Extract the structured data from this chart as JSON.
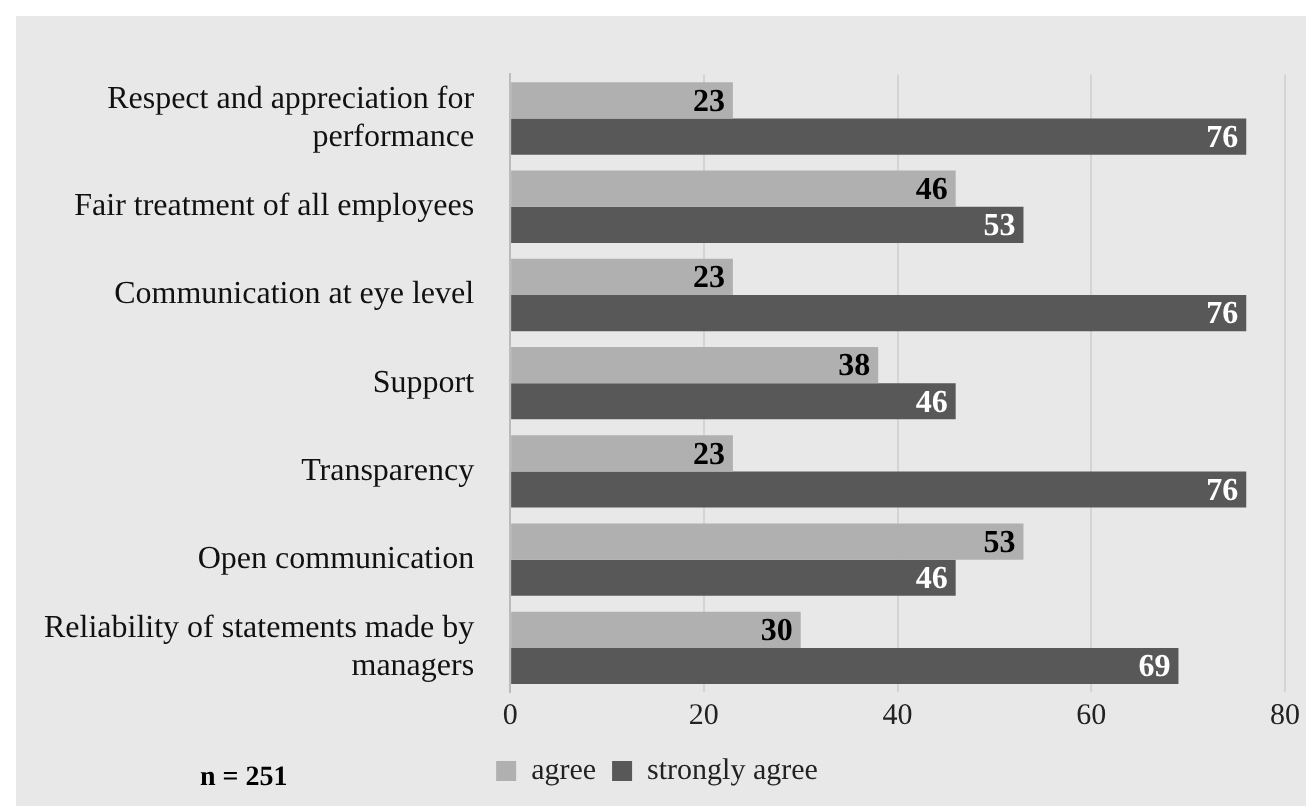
{
  "chart_data": {
    "type": "bar",
    "orientation": "horizontal",
    "categories": [
      "Respect and appreciation for performance",
      "Fair treatment of all employees",
      "Communication at eye level",
      "Support",
      "Transparency",
      "Open communication",
      "Reliability of statements made by managers"
    ],
    "series": [
      {
        "name": "agree",
        "color": "#b0b0b0",
        "values": [
          23,
          46,
          23,
          38,
          23,
          53,
          30
        ]
      },
      {
        "name": "strongly agree",
        "color": "#585858",
        "values": [
          76,
          53,
          76,
          46,
          76,
          46,
          69
        ]
      }
    ],
    "xlim": [
      0,
      80
    ],
    "xticks": [
      0,
      20,
      40,
      60,
      80
    ],
    "grid": "x",
    "legend": "bottom",
    "data_labels": true,
    "annotations": [
      "n = 251"
    ]
  }
}
